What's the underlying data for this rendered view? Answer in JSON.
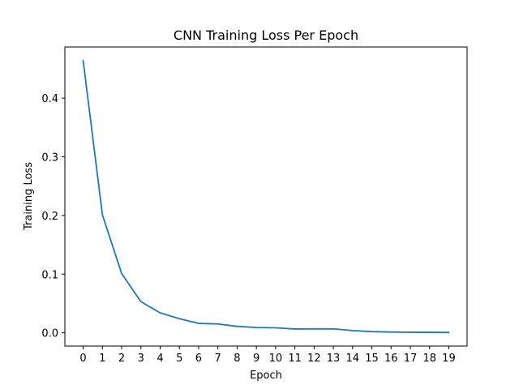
{
  "chart_data": {
    "type": "line",
    "title": "CNN Training Loss Per Epoch",
    "xlabel": "Epoch",
    "ylabel": "Training Loss",
    "x": [
      0,
      1,
      2,
      3,
      4,
      5,
      6,
      7,
      8,
      9,
      10,
      11,
      12,
      13,
      14,
      15,
      16,
      17,
      18,
      19
    ],
    "series": [
      {
        "values": [
          0.464,
          0.201,
          0.101,
          0.053,
          0.034,
          0.024,
          0.016,
          0.015,
          0.011,
          0.009,
          0.0085,
          0.0065,
          0.0067,
          0.0068,
          0.0038,
          0.002,
          0.0013,
          0.001,
          0.0008,
          0.0006
        ]
      }
    ],
    "xticks": [
      "0",
      "1",
      "2",
      "3",
      "4",
      "5",
      "6",
      "7",
      "8",
      "9",
      "10",
      "11",
      "12",
      "13",
      "14",
      "15",
      "16",
      "17",
      "18",
      "19"
    ],
    "yticks": [
      0.0,
      0.1,
      0.2,
      0.3,
      0.4
    ],
    "ytick_labels": [
      "0.0",
      "0.1",
      "0.2",
      "0.3",
      "0.4"
    ],
    "xlim": [
      -0.95,
      19.95
    ],
    "ylim": [
      -0.0226,
      0.4872
    ],
    "line_color": "#1f77b4",
    "grid": false,
    "legend": "none"
  }
}
